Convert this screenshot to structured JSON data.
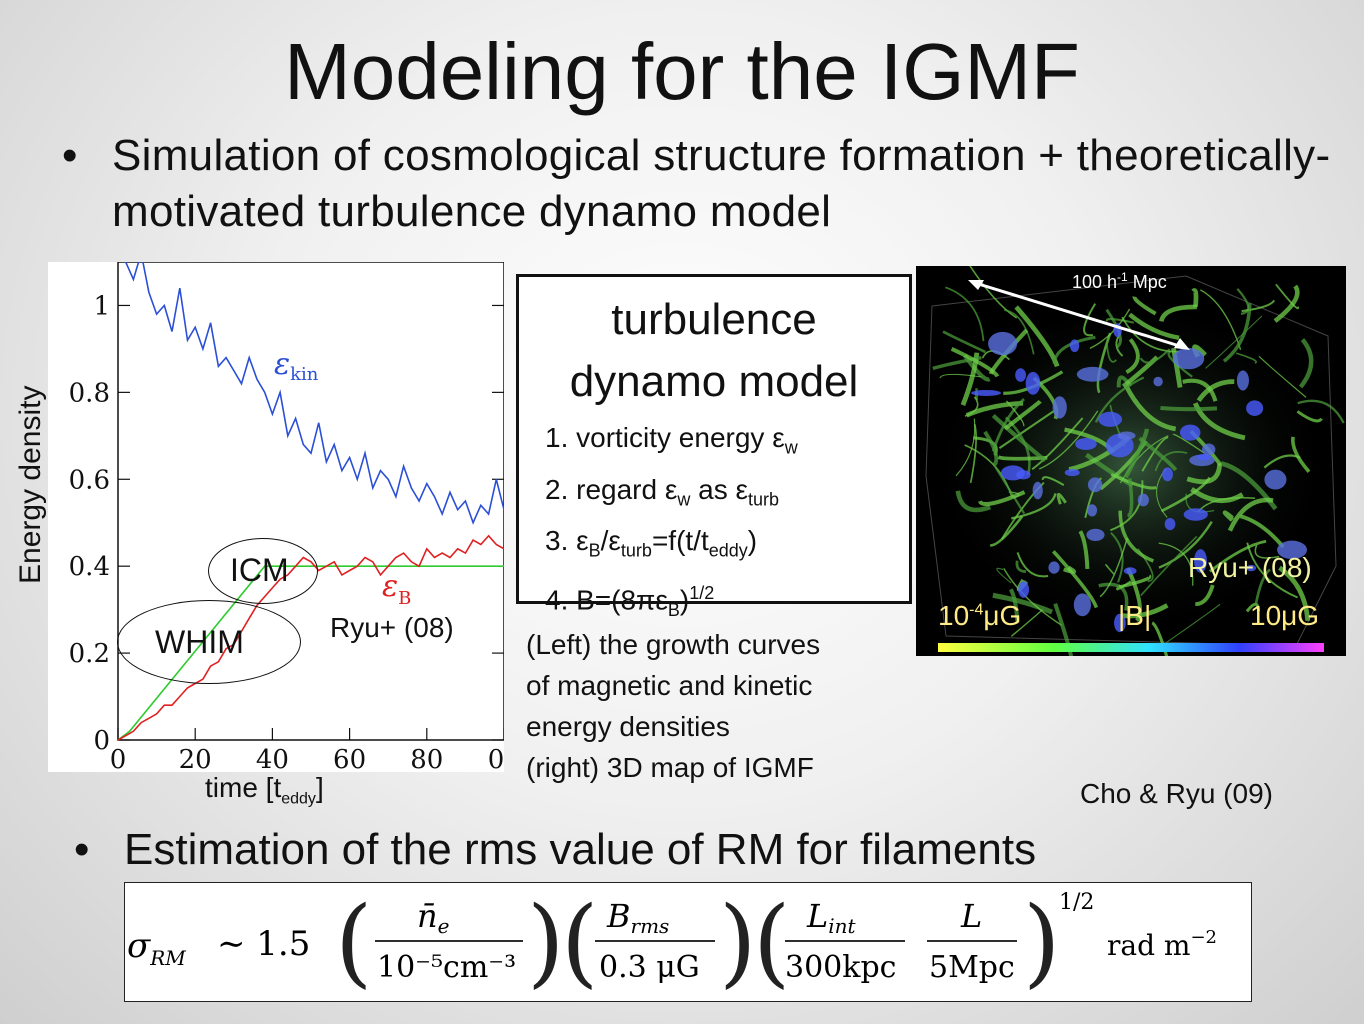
{
  "title": "Modeling for the IGMF",
  "bullet1": "Simulation of cosmological structure formation + theoretically-motivated turbulence dynamo model",
  "bullet2": "Estimation of the rms value of RM for filaments",
  "bullet_glyph": "•",
  "plot": {
    "y_label": "Energy density",
    "x_label_main": "time [t",
    "x_label_sub": "eddy",
    "x_label_close": "]",
    "y_ticks": [
      "0",
      "0.2",
      "0.4",
      "0.6",
      "0.8",
      "1"
    ],
    "x_ticks": [
      "0",
      "20",
      "40",
      "60",
      "80",
      "0"
    ],
    "eps_kin_sym": "ε",
    "eps_kin_sub": "kin",
    "eps_b_sym": "ε",
    "eps_b_sub": "B",
    "icm_label": "ICM",
    "whim_label": "WHIM",
    "credit": "Ryu+ (08)",
    "colors": {
      "kin": "#2b4fd6",
      "b": "#e02020",
      "model": "#2ecc2e"
    }
  },
  "chart_data": {
    "type": "line",
    "xlim": [
      0,
      100
    ],
    "ylim": [
      0,
      1.1
    ],
    "series": [
      {
        "name": "ε kin",
        "x": [
          0,
          2,
          4,
          6,
          8,
          10,
          12,
          14,
          16,
          18,
          20,
          22,
          24,
          26,
          28,
          30,
          32,
          34,
          36,
          38,
          40,
          42,
          44,
          46,
          48,
          50,
          52,
          54,
          56,
          58,
          60,
          62,
          64,
          66,
          68,
          70,
          72,
          74,
          76,
          78,
          80,
          82,
          84,
          86,
          88,
          90,
          92,
          94,
          96,
          98,
          100
        ],
        "y": [
          1.12,
          1.1,
          1.06,
          1.12,
          1.03,
          0.98,
          1.0,
          0.94,
          1.04,
          0.92,
          0.95,
          0.9,
          0.96,
          0.86,
          0.88,
          0.85,
          0.82,
          0.88,
          0.83,
          0.8,
          0.75,
          0.8,
          0.7,
          0.74,
          0.68,
          0.66,
          0.73,
          0.64,
          0.68,
          0.62,
          0.65,
          0.6,
          0.66,
          0.58,
          0.62,
          0.6,
          0.56,
          0.63,
          0.58,
          0.55,
          0.59,
          0.56,
          0.52,
          0.57,
          0.53,
          0.55,
          0.5,
          0.54,
          0.52,
          0.6,
          0.53
        ]
      },
      {
        "name": "ε B",
        "x": [
          0,
          2,
          4,
          6,
          8,
          10,
          12,
          14,
          16,
          18,
          20,
          22,
          24,
          26,
          28,
          30,
          32,
          34,
          36,
          38,
          40,
          42,
          44,
          46,
          48,
          50,
          52,
          54,
          56,
          58,
          60,
          62,
          64,
          66,
          68,
          70,
          72,
          74,
          76,
          78,
          80,
          82,
          84,
          86,
          88,
          90,
          92,
          94,
          96,
          98,
          100
        ],
        "y": [
          0,
          0.01,
          0.02,
          0.04,
          0.05,
          0.06,
          0.08,
          0.08,
          0.1,
          0.12,
          0.13,
          0.14,
          0.17,
          0.18,
          0.21,
          0.22,
          0.25,
          0.28,
          0.31,
          0.33,
          0.35,
          0.37,
          0.38,
          0.4,
          0.42,
          0.41,
          0.39,
          0.4,
          0.41,
          0.38,
          0.39,
          0.4,
          0.42,
          0.41,
          0.38,
          0.4,
          0.42,
          0.43,
          0.41,
          0.4,
          0.44,
          0.42,
          0.43,
          0.42,
          0.44,
          0.43,
          0.46,
          0.45,
          0.47,
          0.45,
          0.44
        ]
      },
      {
        "name": "",
        "x": [
          0,
          3,
          38,
          100
        ],
        "y": [
          0,
          0.02,
          0.4,
          0.4
        ]
      }
    ]
  },
  "model": {
    "title_line1": "turbulence",
    "title_line2": "dynamo model",
    "item1_text": "1. vorticity energy ε",
    "item1_sub": "w",
    "item2_a": "2. regard ε",
    "item2_sub1": "w",
    "item2_b": " as ε",
    "item2_sub2": "turb",
    "item3_a": "3. ε",
    "item3_sub1": "B",
    "item3_b": "/ε",
    "item3_sub2": "turb",
    "item3_c": "=f(t/t",
    "item3_sub3": "eddy",
    "item3_d": ")",
    "item4_a": "4. B=(8πε",
    "item4_sub": "B",
    "item4_b": ")",
    "item4_sup": "1/2"
  },
  "caption": {
    "line1": "(Left) the growth curves",
    "line2": "of magnetic and kinetic",
    "line3": "energy densities",
    "line4": "(right) 3D map of IGMF"
  },
  "map": {
    "scale_a": "100 h",
    "scale_sup": "-1",
    "scale_b": " Mpc",
    "credit": "Ryu+ (08)",
    "cb_low_a": "10",
    "cb_low_sup": "-4",
    "cb_low_b": "μG",
    "cb_mid": "|B|",
    "cb_high": "10μG"
  },
  "reference": "Cho & Ryu (09)",
  "formula": {
    "lhs": "σ",
    "lhs_sub": "RM",
    "approx": "∼ 1.5",
    "n_num": "n̄",
    "n_sub": "e",
    "n_den": "10⁻⁵cm⁻³",
    "b_num": "B",
    "b_sub": "rms",
    "b_den": "0.3 μG",
    "l_num": "L",
    "l_sub": "int",
    "l_den": "300kpc",
    "L_num": "L",
    "L_den": "5Mpc",
    "exponent": "1/2",
    "unit": "rad m",
    "unit_sup": "−2"
  }
}
